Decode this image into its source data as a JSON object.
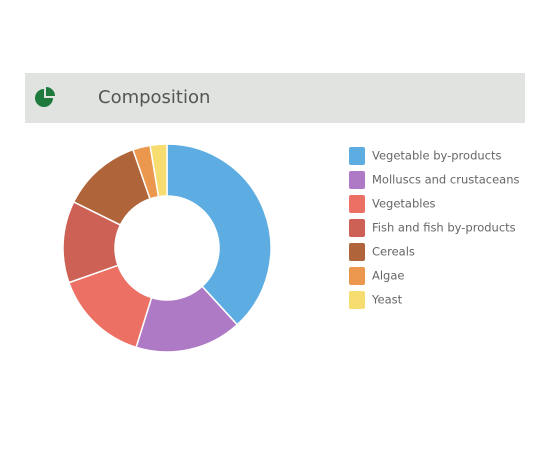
{
  "chart_data": {
    "type": "donut",
    "title": "Composition",
    "series": [
      {
        "name": "Vegetable by-products",
        "color": "#5dade2",
        "values": [
          38.2
        ]
      },
      {
        "name": "Molluscs and crustaceans",
        "color": "#af7ac5",
        "values": [
          16.6
        ]
      },
      {
        "name": "Vegetables",
        "color": "#ec7063",
        "values": [
          14.8
        ]
      },
      {
        "name": "Fish and fish by-products",
        "color": "#cd6155",
        "values": [
          12.7
        ]
      },
      {
        "name": "Cereals",
        "color": "#b0643a",
        "values": [
          12.4
        ]
      },
      {
        "name": "Algae",
        "color": "#eb984e",
        "values": [
          2.7
        ]
      },
      {
        "name": "Yeast",
        "color": "#f7dc6f",
        "values": [
          2.6
        ]
      }
    ],
    "legend": "right"
  }
}
